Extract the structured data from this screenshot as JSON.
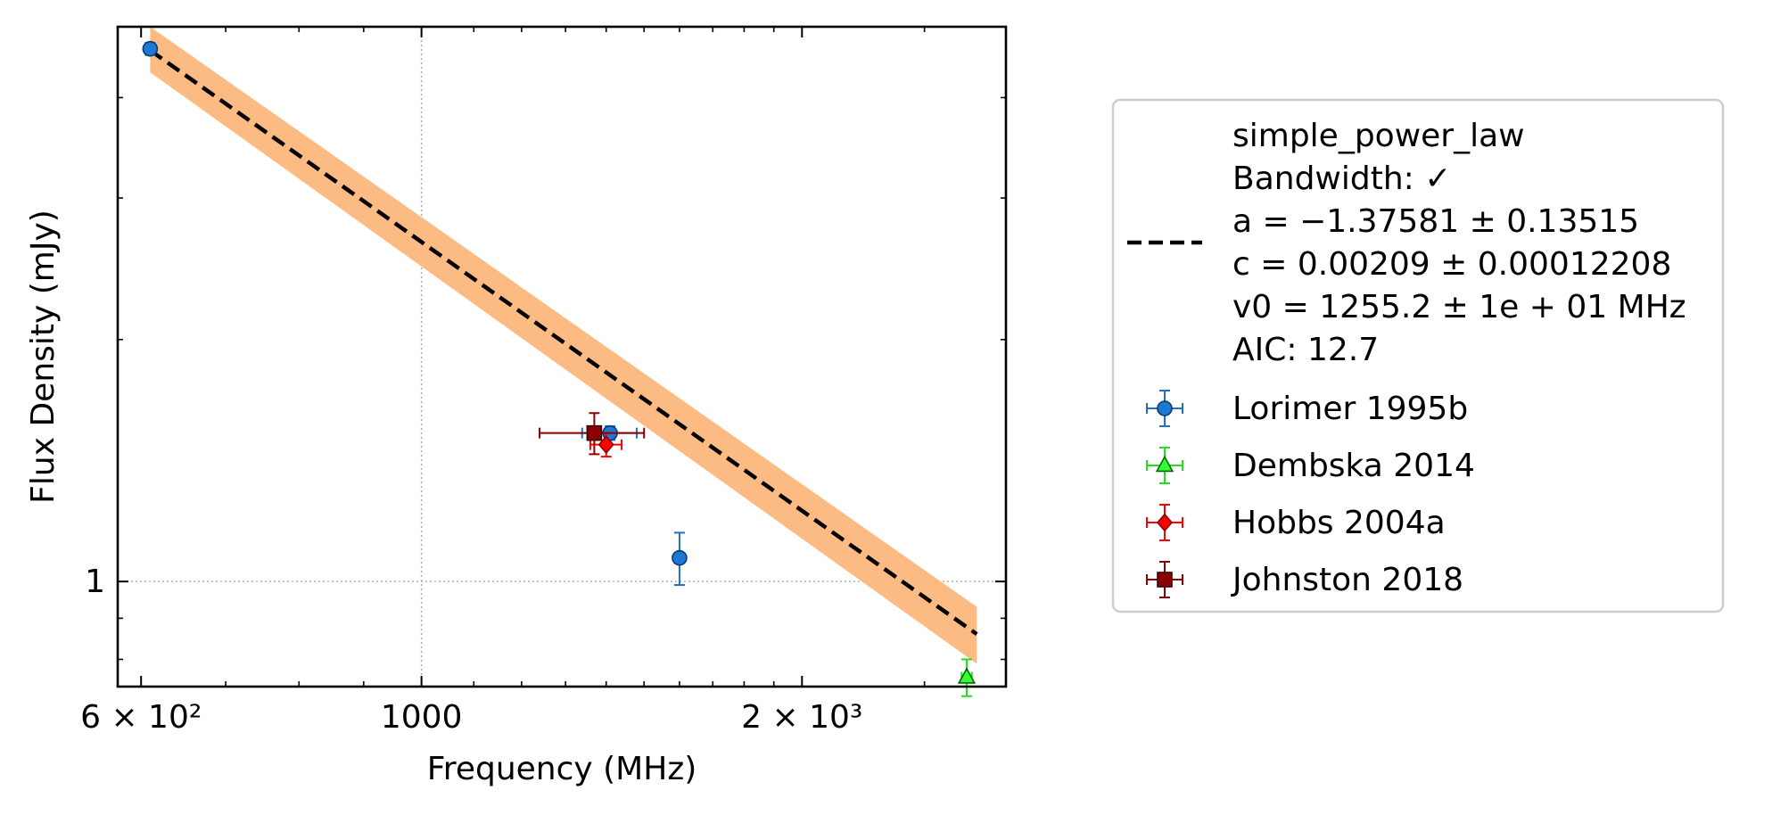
{
  "chart_data": {
    "type": "scatter",
    "xlabel": "Frequency (MHz)",
    "ylabel": "Flux Density (mJy)",
    "x_scale": "log",
    "y_scale": "log",
    "xlim": [
      575,
      2900
    ],
    "ylim": [
      0.74,
      4.9
    ],
    "x_ticks": [
      {
        "value": 600,
        "label": "6 × 10²"
      },
      {
        "value": 1000,
        "label": "1000"
      },
      {
        "value": 2000,
        "label": "2 × 10³"
      }
    ],
    "y_ticks": [
      {
        "value": 1,
        "label": "1"
      }
    ],
    "grid": true,
    "legend_placement": "outside-right",
    "fit": {
      "model": "simple_power_law",
      "label_lines": [
        "simple_power_law",
        "Bandwidth: ✓",
        "a = −1.37581 ± 0.13515",
        "c = 0.00209 ± 0.00012208",
        "v0 = 1255.2 ± 1e + 01 MHz",
        "AIC: 12.7"
      ],
      "x": [
        610,
        2750
      ],
      "y": [
        4.58,
        0.86
      ],
      "band_lower": [
        4.3,
        0.79
      ],
      "band_upper": [
        4.9,
        0.93
      ],
      "line_color": "#000000",
      "band_color": "#fdbb84"
    },
    "series": [
      {
        "name": "Lorimer 1995b",
        "marker": "circle",
        "color": "#1f77d4",
        "edge": "#0a3a70",
        "ecolor": "#1f6fc4",
        "points": [
          {
            "x": 610,
            "y": 4.6,
            "yerr": 0.08,
            "xerr": 0
          },
          {
            "x": 1410,
            "y": 1.53,
            "yerr": 0.03,
            "xerr": 70
          },
          {
            "x": 1600,
            "y": 1.07,
            "yerr": 0.08,
            "xerr": 0
          }
        ]
      },
      {
        "name": "Dembska 2014",
        "marker": "triangle",
        "color": "#33ff33",
        "edge": "#006600",
        "ecolor": "#22dd22",
        "points": [
          {
            "x": 2700,
            "y": 0.76,
            "yerr": 0.04,
            "xerr": 25
          }
        ]
      },
      {
        "name": "Hobbs 2004a",
        "marker": "diamond",
        "color": "#ff0000",
        "edge": "#880000",
        "ecolor": "#ff0000",
        "points": [
          {
            "x": 1400,
            "y": 1.48,
            "yerr": 0.05,
            "xerr": 40
          }
        ]
      },
      {
        "name": "Johnston 2018",
        "marker": "square",
        "color": "#8b0000",
        "edge": "#3a0000",
        "ecolor": "#8b0000",
        "points": [
          {
            "x": 1370,
            "y": 1.53,
            "yerr": 0.09,
            "xerr": 130
          }
        ]
      }
    ]
  }
}
